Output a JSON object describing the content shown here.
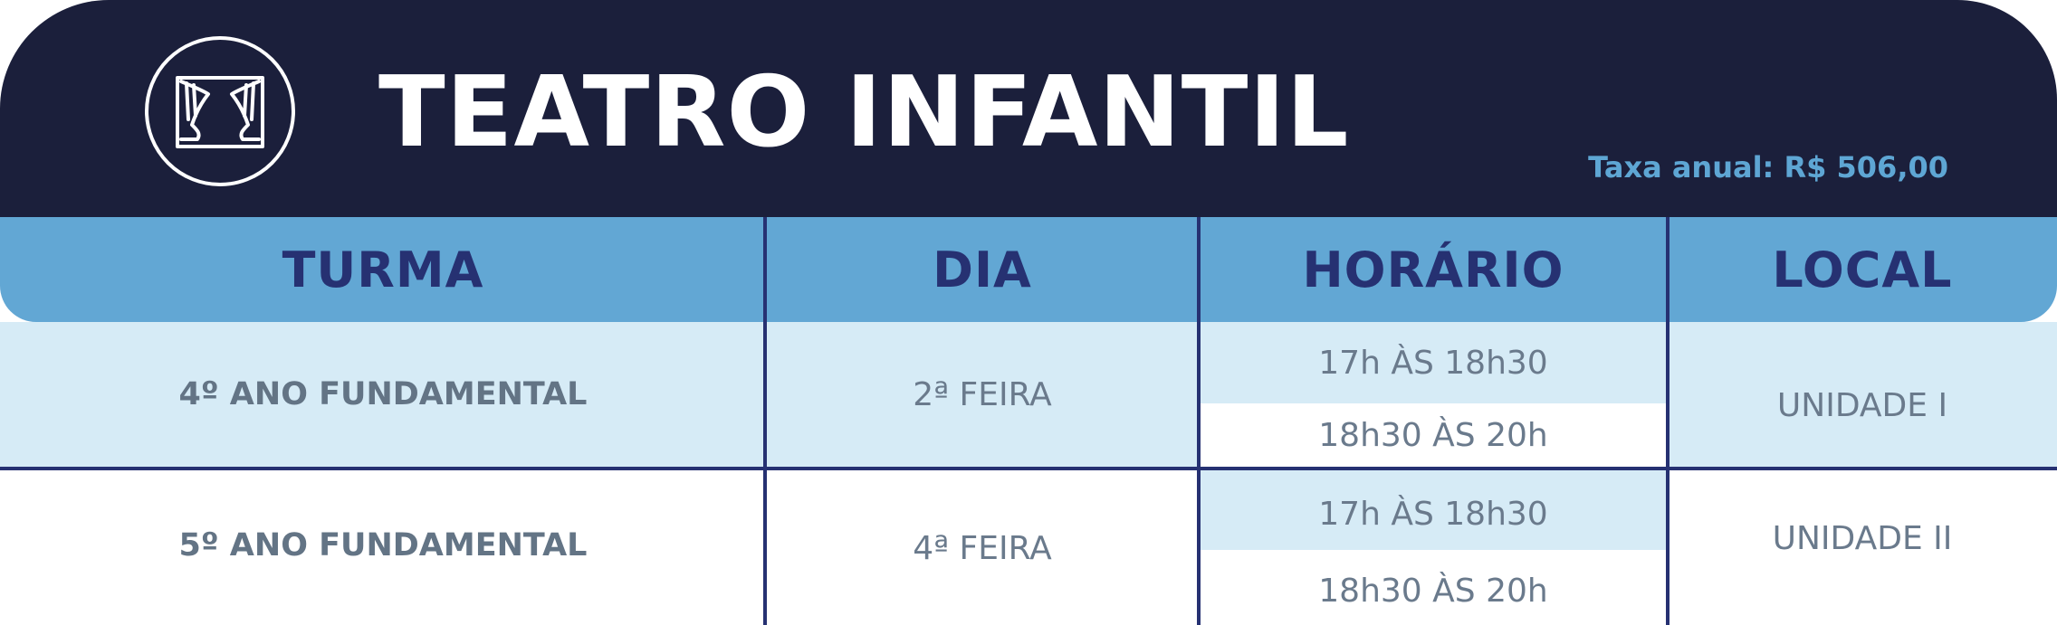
{
  "header": {
    "title": "TEATRO INFANTIL",
    "fee": "Taxa anual: R$ 506,00",
    "icon": "theater-curtain-icon"
  },
  "columns": [
    "TURMA",
    "DIA",
    "HORÁRIO",
    "LOCAL"
  ],
  "rows": [
    {
      "turma": "4º ANO FUNDAMENTAL",
      "dia": "2ª FEIRA",
      "horarios": [
        "17h ÀS 18h30",
        "18h30 ÀS 20h"
      ],
      "local": "UNIDADE I"
    },
    {
      "turma": "5º ANO FUNDAMENTAL",
      "dia": "4ª FEIRA",
      "horarios": [
        "17h ÀS 18h30",
        "18h30 ÀS 20h"
      ],
      "local": "UNIDADE II"
    }
  ],
  "colors": {
    "navy": "#1b1f3b",
    "header_blue": "#62a7d4",
    "light_blue": "#d6ebf6",
    "column_text": "#263172",
    "body_text": "#637485"
  }
}
